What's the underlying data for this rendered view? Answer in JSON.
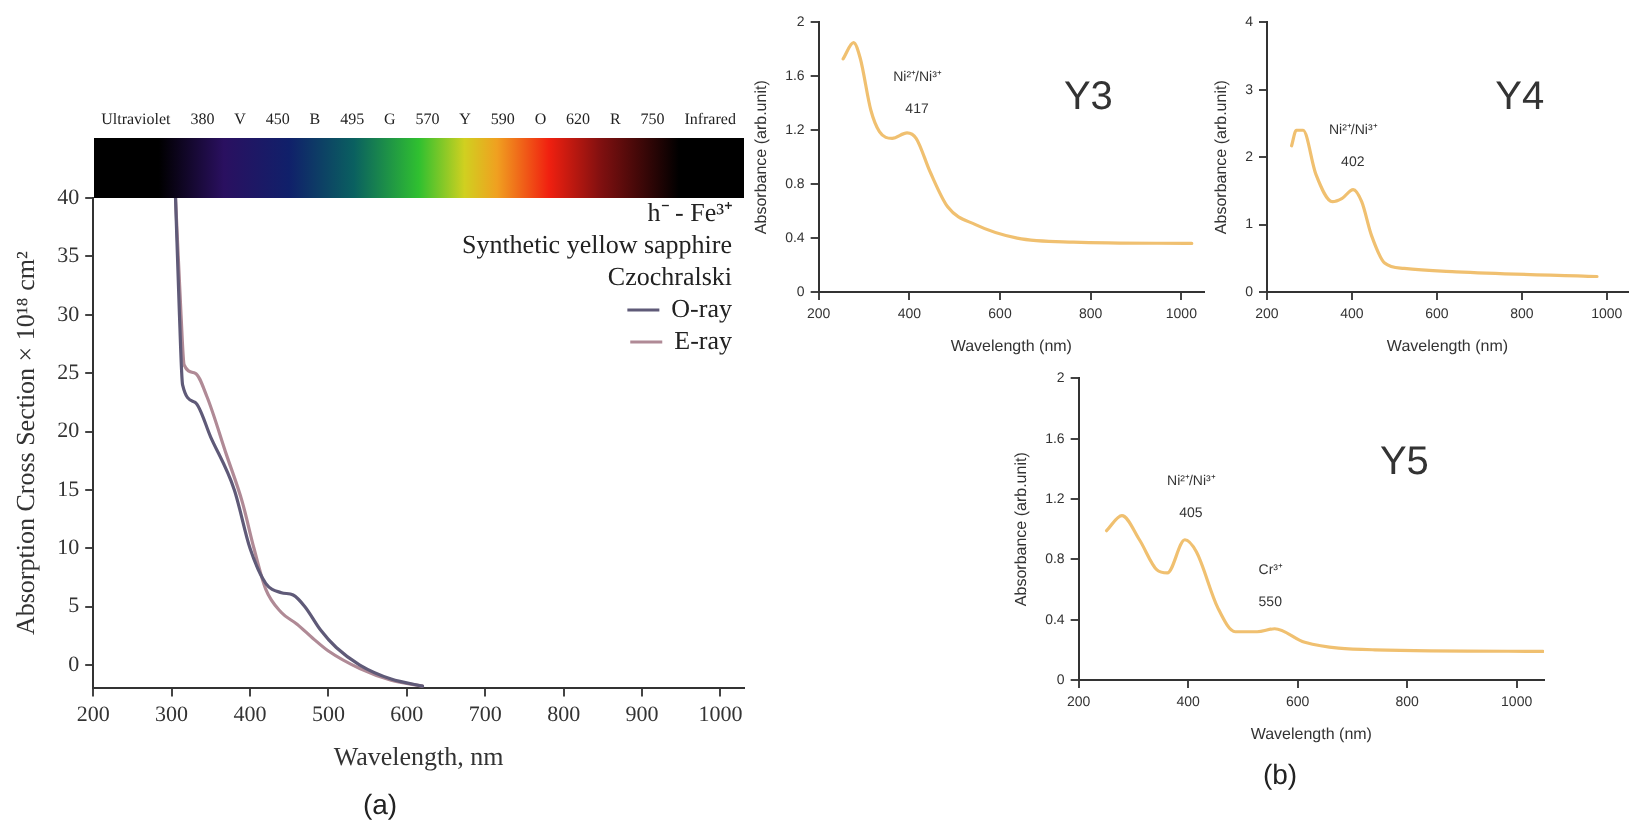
{
  "chart_data": [
    {
      "type": "line",
      "subtitle": "(a)",
      "xlabel": "Wavelength, nm",
      "ylabel": "Absorption Cross Section × 10¹⁸ cm²",
      "legend_title": "h⁻ - Fe³⁺\nSynthetic yellow sapphire\nCzochralski",
      "legend": "top right",
      "grid": false,
      "marker": "none",
      "line_style": "solid",
      "xlim": [
        200,
        1030
      ],
      "xticks": [
        200,
        300,
        400,
        500,
        600,
        700,
        800,
        900,
        1000
      ],
      "ylim": [
        -2,
        40
      ],
      "yticks": [
        0,
        5,
        10,
        15,
        20,
        25,
        30,
        35,
        40
      ],
      "annotations": [
        "Ultraviolet",
        "380",
        "V",
        "450",
        "B",
        "495",
        "G",
        "570",
        "Y",
        "590",
        "O",
        "620",
        "R",
        "750",
        "Infrared"
      ],
      "series": [
        {
          "name": "O-ray",
          "color": "#5f5a78",
          "x": [
            305,
            310,
            314,
            330,
            350,
            380,
            400,
            420,
            440,
            455,
            470,
            490,
            510,
            540,
            580,
            620
          ],
          "values": [
            40,
            30,
            24,
            22.5,
            19.5,
            15,
            10,
            7,
            6.2,
            6,
            5,
            3,
            1.5,
            0,
            -1.2,
            -1.8
          ]
        },
        {
          "name": "E-ray",
          "color": "#b08a96",
          "x": [
            305,
            312,
            316,
            330,
            345,
            370,
            390,
            405,
            420,
            440,
            460,
            480,
            500,
            540,
            580,
            620
          ],
          "values": [
            40,
            30,
            25.7,
            25,
            23,
            18,
            14,
            10,
            6.5,
            4.5,
            3.5,
            2.3,
            1.2,
            -0.3,
            -1.3,
            -1.8
          ]
        }
      ]
    },
    {
      "type": "line",
      "title": "Y3",
      "xlabel": "Wavelength (nm)",
      "ylabel": "Absorbance (arb.unit)",
      "grid": false,
      "marker": "none",
      "line_style": "solid",
      "xlim": [
        200,
        1050
      ],
      "xticks": [
        200,
        400,
        600,
        800,
        1000
      ],
      "ylim": [
        0,
        2
      ],
      "yticks": [
        0,
        0.4,
        0.8,
        1.2,
        1.6,
        2
      ],
      "annotations": [
        "Ni²⁺/Ni³⁺",
        {
          "text": "417",
          "x": 417,
          "y": 1.16
        }
      ],
      "series": [
        {
          "color": "#f0c070",
          "x": [
            254,
            277,
            292,
            315,
            334,
            362,
            395,
            415,
            446,
            485,
            546,
            638,
            762,
            1023
          ],
          "values": [
            1.73,
            1.85,
            1.73,
            1.35,
            1.19,
            1.14,
            1.18,
            1.14,
            0.89,
            0.63,
            0.5,
            0.4,
            0.37,
            0.36
          ]
        }
      ]
    },
    {
      "type": "line",
      "title": "Y4",
      "xlabel": "Wavelength (nm)",
      "ylabel": "Absorbance (arb.unit)",
      "grid": false,
      "marker": "none",
      "line_style": "solid",
      "xlim": [
        200,
        1050
      ],
      "xticks": [
        200,
        400,
        600,
        800,
        1000
      ],
      "ylim": [
        0,
        4
      ],
      "yticks": [
        0,
        1,
        2,
        3,
        4
      ],
      "annotations": [
        "Ni²⁺/Ni³⁺",
        {
          "text": "402",
          "x": 402,
          "y": 1.52
        }
      ],
      "series": [
        {
          "color": "#f0c070",
          "x": [
            258,
            269,
            285,
            315,
            354,
            377,
            403,
            423,
            446,
            477,
            523,
            646,
            977
          ],
          "values": [
            2.17,
            2.4,
            2.4,
            1.75,
            1.34,
            1.39,
            1.52,
            1.34,
            0.84,
            0.43,
            0.35,
            0.3,
            0.23
          ]
        }
      ]
    },
    {
      "type": "line",
      "title": "Y5",
      "subtitle": "(b)",
      "xlabel": "Wavelength (nm)",
      "ylabel": "Absorbance (arb.unit)",
      "grid": false,
      "marker": "none",
      "line_style": "solid",
      "xlim": [
        200,
        1050
      ],
      "xticks": [
        200,
        400,
        600,
        800,
        1000
      ],
      "ylim": [
        0,
        2
      ],
      "yticks": [
        0,
        0.4,
        0.8,
        1.2,
        1.6,
        2
      ],
      "annotations": [
        "Ni²⁺/Ni³⁺",
        {
          "text": "405",
          "x": 405,
          "y": 0.93
        },
        "Cr³⁺",
        {
          "text": "550",
          "x": 550,
          "y": 0.34
        }
      ],
      "series": [
        {
          "color": "#f0c070",
          "x": [
            251,
            279,
            311,
            343,
            362,
            394,
            415,
            454,
            486,
            526,
            558,
            613,
            741,
            1048
          ],
          "values": [
            0.99,
            1.09,
            0.93,
            0.73,
            0.71,
            0.93,
            0.85,
            0.48,
            0.32,
            0.32,
            0.34,
            0.25,
            0.2,
            0.19
          ]
        }
      ]
    }
  ]
}
